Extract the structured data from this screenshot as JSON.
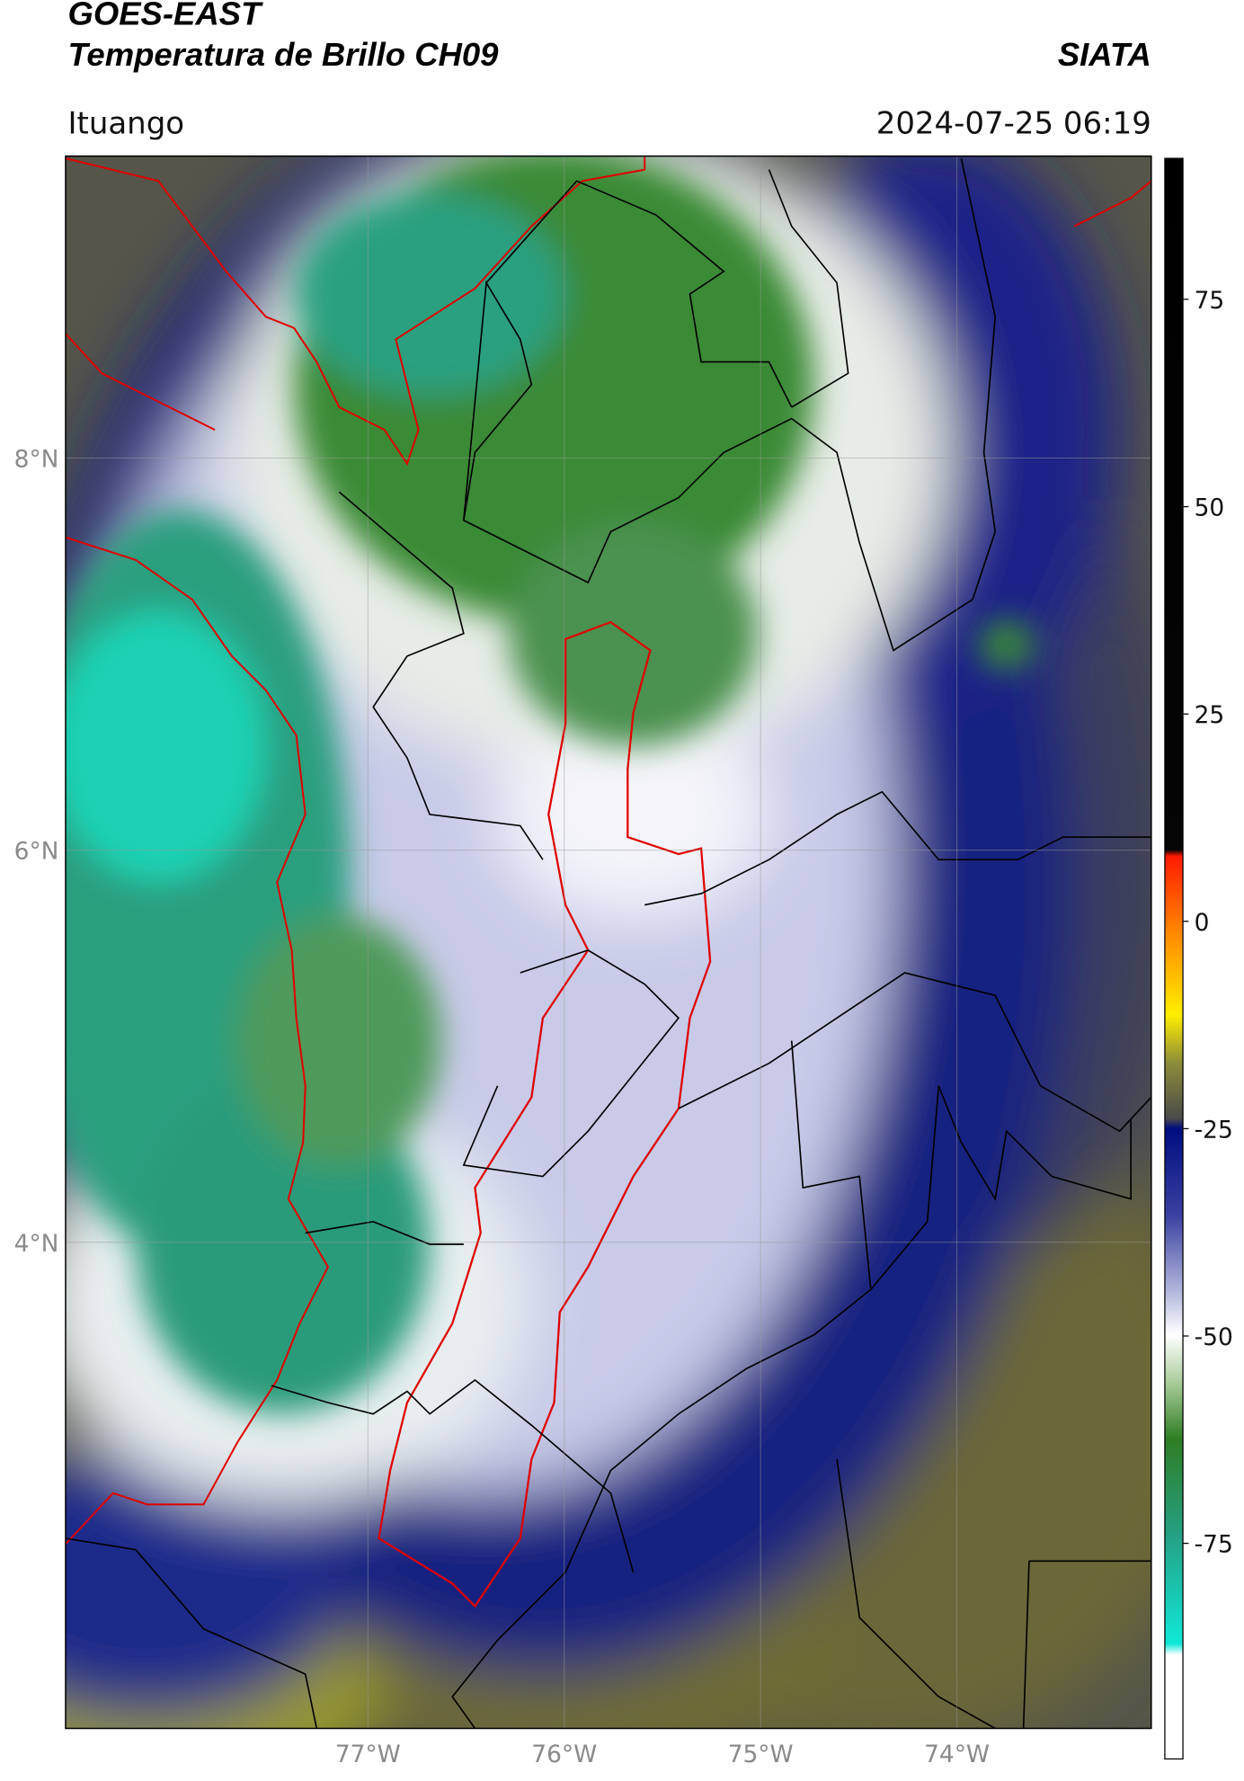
{
  "header": {
    "source": "GOES-EAST",
    "product": "Temperatura de Brillo CH09",
    "brand": "SIATA",
    "location": "Ituango",
    "datetime": "2024-07-25 06:19"
  },
  "chart_data": {
    "type": "map",
    "xlim": [
      -78.54,
      -73.01
    ],
    "ylim": [
      1.52,
      9.54
    ],
    "xticks": [
      {
        "value": -77,
        "label": "77°W"
      },
      {
        "value": -76,
        "label": "76°W"
      },
      {
        "value": -75,
        "label": "75°W"
      },
      {
        "value": -74,
        "label": "74°W"
      }
    ],
    "yticks": [
      {
        "value": 4,
        "label": "4°N"
      },
      {
        "value": 6,
        "label": "6°N"
      },
      {
        "value": 8,
        "label": "8°N"
      }
    ],
    "grid": true,
    "colorbar": {
      "lim": [
        -101,
        92
      ],
      "ticks": [
        75,
        50,
        25,
        0,
        -25,
        -50,
        -75
      ]
    }
  }
}
